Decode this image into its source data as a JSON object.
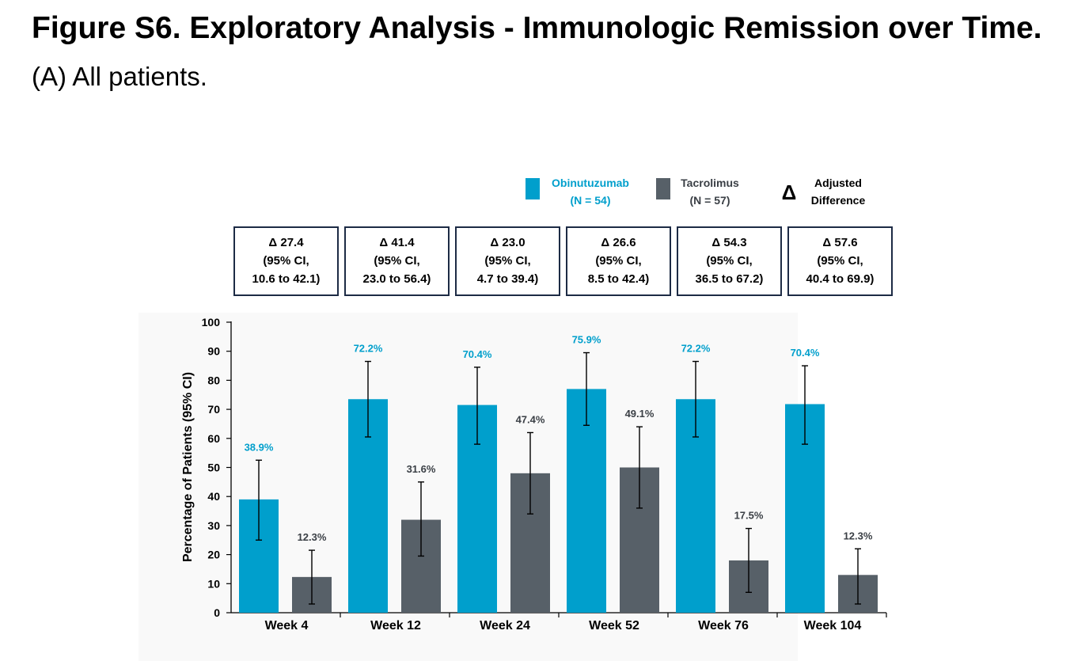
{
  "figure": {
    "title": "Figure S6. Exploratory Analysis - Immunologic Remission over Time.",
    "subtitle": "(A) All patients."
  },
  "chart_data": {
    "type": "bar",
    "categories": [
      "Week 4",
      "Week 12",
      "Week 24",
      "Week 52",
      "Week 76",
      "Week 104"
    ],
    "series": [
      {
        "name": "Obinutuzumab",
        "n_label": "(N = 54)",
        "color": "#009fcc",
        "values": [
          38.9,
          72.2,
          70.4,
          75.9,
          72.2,
          70.4
        ],
        "bar_values": [
          39,
          73.5,
          71.5,
          77,
          73.5,
          71.8
        ],
        "labels": [
          "38.9%",
          "72.2%",
          "70.4%",
          "75.9%",
          "72.2%",
          "70.4%"
        ],
        "ci_lower": [
          25,
          60.5,
          58,
          64.5,
          60.5,
          58
        ],
        "ci_upper": [
          52.5,
          86.5,
          84.5,
          89.5,
          86.5,
          85
        ]
      },
      {
        "name": "Tacrolimus",
        "n_label": "(N = 57)",
        "color": "#576068",
        "values": [
          12.3,
          31.6,
          47.4,
          49.1,
          17.5,
          12.3
        ],
        "bar_values": [
          12.3,
          32,
          48,
          50,
          18,
          13
        ],
        "labels": [
          "12.3%",
          "31.6%",
          "47.4%",
          "49.1%",
          "17.5%",
          "12.3%"
        ],
        "ci_lower": [
          3,
          19.5,
          34,
          36,
          7,
          3
        ],
        "ci_upper": [
          21.5,
          45,
          62,
          64,
          29,
          22
        ]
      }
    ],
    "differences": [
      {
        "delta": "Δ 27.4",
        "ci_line1": "(95% CI,",
        "ci_line2": "10.6 to 42.1)"
      },
      {
        "delta": "Δ 41.4",
        "ci_line1": "(95% CI,",
        "ci_line2": "23.0 to 56.4)"
      },
      {
        "delta": "Δ 23.0",
        "ci_line1": "(95% CI,",
        "ci_line2": "4.7 to 39.4)"
      },
      {
        "delta": "Δ 26.6",
        "ci_line1": "(95% CI,",
        "ci_line2": "8.5 to 42.4)"
      },
      {
        "delta": "Δ 54.3",
        "ci_line1": "(95% CI,",
        "ci_line2": "36.5 to 67.2)"
      },
      {
        "delta": "Δ 57.6",
        "ci_line1": "(95% CI,",
        "ci_line2": "40.4 to 69.9)"
      }
    ],
    "legend": {
      "delta_symbol": "Δ",
      "delta_label_line1": "Adjusted",
      "delta_label_line2": "Difference",
      "position": "top-right"
    },
    "ylabel": "Percentage of Patients (95% CI)",
    "xlabel": "",
    "ylim": [
      0,
      100
    ],
    "yticks": [
      0,
      10,
      20,
      30,
      40,
      50,
      60,
      70,
      80,
      90,
      100
    ],
    "grid": false,
    "plot_background": "#f9f9f9",
    "box_border_color": "#1d2b45",
    "text_color": "#3a3f45"
  }
}
